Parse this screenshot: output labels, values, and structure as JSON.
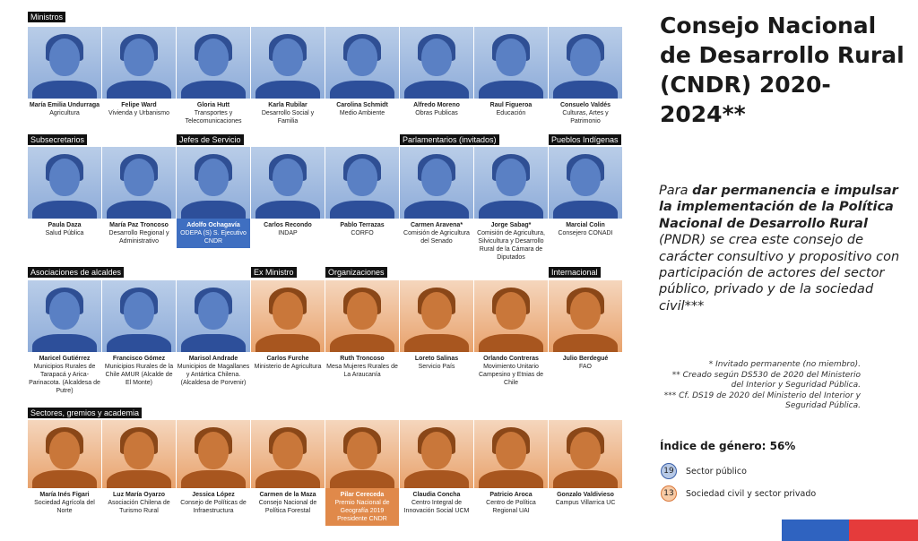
{
  "sections": {
    "ministros": "Ministros",
    "subsecretarios": "Subsecretarios",
    "jefes": "Jefes de Servicio",
    "parlamentarios": "Parlamentarios (invitados)",
    "pueblos": "Pueblos Indígenas",
    "asociaciones": "Asociaciones de alcaldes",
    "exministro": "Ex Ministro",
    "organizaciones": "Organizaciones",
    "internacional": "Internacional",
    "sectores": "Sectores, gremios y academia"
  },
  "people": [
    {
      "name": "María Emilia Undurraga",
      "role": "Agricultura"
    },
    {
      "name": "Felipe Ward",
      "role": "Vivienda y Urbanismo"
    },
    {
      "name": "Gloria Hutt",
      "role": "Transportes y Telecomunicaciones"
    },
    {
      "name": "Karla Rubilar",
      "role": "Desarrollo Social y Familia"
    },
    {
      "name": "Carolina Schmidt",
      "role": "Medio Ambiente"
    },
    {
      "name": "Alfredo Moreno",
      "role": "Obras Publicas"
    },
    {
      "name": "Raul Figueroa",
      "role": "Educación"
    },
    {
      "name": "Consuelo Valdés",
      "role": "Culturas, Artes y Patrimonio"
    },
    {
      "name": "Paula Daza",
      "role": "Salud Pública"
    },
    {
      "name": "María Paz Troncoso",
      "role": "Desarrollo Regional y Administrativo"
    },
    {
      "name": "Adolfo Ochagavía",
      "role": "ODEPA (S) S. Ejecutivo CNDR"
    },
    {
      "name": "Carlos Recondo",
      "role": "INDAP"
    },
    {
      "name": "Pablo Terrazas",
      "role": "CORFO"
    },
    {
      "name": "Carmen Aravena*",
      "role": "Comisión de Agricultura del Senado"
    },
    {
      "name": "Jorge Sabag*",
      "role": "Comisión de Agricultura, Silvicultura y Desarrollo Rural de la Cámara de Diputados"
    },
    {
      "name": "Marcial Colin",
      "role": "Consejero CONADI"
    },
    {
      "name": "Maricel Gutiérrez",
      "role": "Municipios Rurales de Tarapacá y Arica-Parinacota. (Alcaldesa de Putre)"
    },
    {
      "name": "Francisco Gómez",
      "role": "Municipios Rurales de la Chile AMUR (Alcalde de El Monte)"
    },
    {
      "name": "Marisol Andrade",
      "role": "Municipios de Magallanes y Antártica Chilena. (Alcaldesa de Porvenir)"
    },
    {
      "name": "Carlos Furche",
      "role": "Ministerio de Agricultura"
    },
    {
      "name": "Ruth Troncoso",
      "role": "Mesa Mujeres Rurales de La Araucanía"
    },
    {
      "name": "Loreto Salinas",
      "role": "Servicio País"
    },
    {
      "name": "Orlando Contreras",
      "role": "Movimiento Unitario Campesino y Etnias de Chile"
    },
    {
      "name": "Julio Berdegué",
      "role": "FAO"
    },
    {
      "name": "María Inés Figari",
      "role": "Sociedad Agrícola del Norte"
    },
    {
      "name": "Luz María Oyarzo",
      "role": "Asociación Chilena de Turismo Rural"
    },
    {
      "name": "Jessica López",
      "role": "Consejo de Políticas de Infraestructura"
    },
    {
      "name": "Carmen de la Maza",
      "role": "Consejo Nacional de Política Forestal"
    },
    {
      "name": "Pilar Cereceda",
      "role": "Premio Nacional de Geografía 2019 Presidente CNDR"
    },
    {
      "name": "Claudia Concha",
      "role": "Centro Integral de Innovación Social UCM"
    },
    {
      "name": "Patricio Aroca",
      "role": "Centro de Política Regional UAI"
    },
    {
      "name": "Gonzalo Valdivieso",
      "role": "Campus Villarrica UC"
    }
  ],
  "title": "Consejo Nacional de Desarrollo Rural (CNDR) 2020-2024**",
  "description": {
    "p1": "Para ",
    "b1": "dar permanencia e impulsar la implementación de la Política Nacional de Desarrollo Rural",
    "p2": " (PNDR) se crea este consejo de carácter consultivo y propositivo con participación de actores del sector público, privado y de la sociedad civil***"
  },
  "notes": {
    "n1": "* Invitado permanente (no miembro).",
    "n2": "** Creado según DS530 de 2020 del Ministerio  del Interior y Seguridad Pública.",
    "n3": "*** Cf. DS19 de 2020 del Ministerio del Interior y Seguridad Pública."
  },
  "gender_index": "Índice de género: 56%",
  "legend": [
    {
      "count": "19",
      "label": "Sector público",
      "color": "#3a5fa8"
    },
    {
      "count": "13",
      "label": "Sociedad civil y sector privado",
      "color": "#d9773a"
    }
  ],
  "colors": {
    "public": "#5a80c4",
    "private": "#c9773a",
    "flag_blue": "#2f63c0",
    "flag_red": "#e53b3b"
  }
}
